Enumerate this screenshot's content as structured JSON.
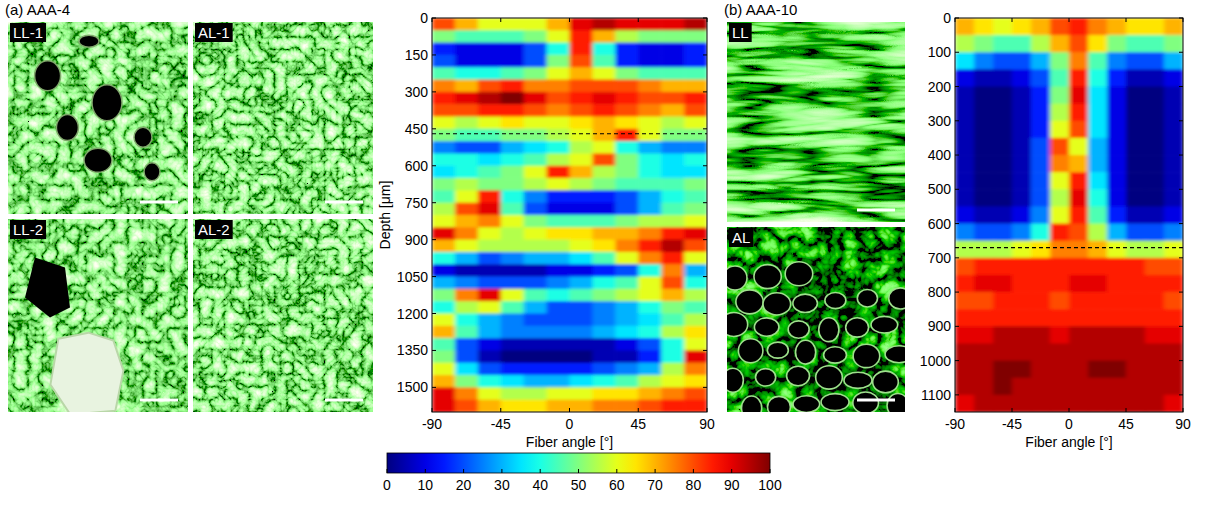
{
  "panels": [
    {
      "label": "(a) AAA-4",
      "images": [
        "LL-1",
        "AL-1",
        "LL-2",
        "AL-2"
      ]
    },
    {
      "label": "(b) AAA-10",
      "images": [
        "LL",
        "AL"
      ]
    }
  ],
  "colorbar": {
    "range": [
      0,
      100
    ],
    "ticks": [
      0,
      10,
      20,
      30,
      40,
      50,
      60,
      70,
      80,
      90,
      100
    ]
  },
  "chart_data": [
    {
      "type": "heatmap",
      "x_label": "Fiber angle [°]",
      "y_label": "Depth [μm]",
      "xlim": [
        -90,
        90
      ],
      "xticks": [
        -90,
        -45,
        0,
        45,
        90
      ],
      "ylim": [
        0,
        1600
      ],
      "yticks": [
        0,
        150,
        300,
        450,
        600,
        750,
        900,
        1050,
        1200,
        1350,
        1500
      ],
      "boundary_depth": 470,
      "cells": [
        [
          80,
          70,
          60,
          60,
          60,
          70,
          90,
          95,
          90,
          90,
          90,
          95
        ],
        [
          50,
          45,
          45,
          45,
          50,
          60,
          85,
          70,
          55,
          50,
          50,
          50
        ],
        [
          15,
          10,
          10,
          10,
          20,
          40,
          85,
          40,
          15,
          10,
          10,
          15
        ],
        [
          20,
          10,
          10,
          10,
          20,
          50,
          80,
          45,
          15,
          10,
          10,
          15
        ],
        [
          45,
          40,
          40,
          45,
          50,
          60,
          70,
          60,
          50,
          45,
          45,
          45
        ],
        [
          75,
          70,
          80,
          85,
          75,
          75,
          80,
          80,
          80,
          75,
          70,
          70
        ],
        [
          85,
          90,
          95,
          100,
          90,
          80,
          85,
          90,
          85,
          80,
          80,
          85
        ],
        [
          80,
          80,
          85,
          85,
          80,
          75,
          80,
          85,
          80,
          75,
          70,
          80
        ],
        [
          60,
          55,
          60,
          65,
          60,
          60,
          65,
          70,
          65,
          60,
          55,
          60
        ],
        [
          50,
          45,
          45,
          50,
          50,
          55,
          60,
          70,
          85,
          60,
          50,
          50
        ],
        [
          25,
          20,
          20,
          30,
          35,
          40,
          55,
          60,
          40,
          30,
          25,
          25
        ],
        [
          40,
          40,
          35,
          40,
          45,
          55,
          60,
          80,
          50,
          40,
          35,
          40
        ],
        [
          35,
          40,
          45,
          50,
          60,
          85,
          70,
          55,
          50,
          40,
          35,
          35
        ],
        [
          50,
          55,
          50,
          50,
          55,
          60,
          55,
          50,
          45,
          45,
          45,
          50
        ],
        [
          45,
          60,
          85,
          40,
          25,
          15,
          15,
          15,
          20,
          30,
          40,
          45
        ],
        [
          55,
          80,
          90,
          45,
          20,
          10,
          10,
          10,
          20,
          30,
          45,
          50
        ],
        [
          60,
          70,
          75,
          60,
          50,
          45,
          45,
          45,
          50,
          55,
          55,
          60
        ],
        [
          90,
          75,
          60,
          55,
          60,
          65,
          65,
          70,
          70,
          75,
          85,
          90
        ],
        [
          70,
          60,
          55,
          55,
          55,
          55,
          60,
          65,
          75,
          85,
          95,
          80
        ],
        [
          40,
          30,
          20,
          25,
          30,
          30,
          35,
          45,
          60,
          75,
          85,
          60
        ],
        [
          10,
          5,
          5,
          5,
          5,
          10,
          10,
          15,
          20,
          40,
          75,
          30
        ],
        [
          30,
          25,
          20,
          20,
          20,
          25,
          30,
          40,
          45,
          60,
          80,
          40
        ],
        [
          50,
          75,
          90,
          60,
          45,
          40,
          45,
          50,
          55,
          60,
          70,
          55
        ],
        [
          40,
          55,
          60,
          45,
          30,
          20,
          20,
          25,
          30,
          40,
          50,
          45
        ],
        [
          60,
          40,
          30,
          25,
          20,
          20,
          20,
          25,
          30,
          35,
          45,
          55
        ],
        [
          70,
          45,
          30,
          25,
          25,
          25,
          25,
          30,
          35,
          40,
          55,
          65
        ],
        [
          45,
          20,
          10,
          5,
          5,
          5,
          5,
          5,
          10,
          20,
          40,
          60
        ],
        [
          50,
          20,
          5,
          0,
          0,
          0,
          0,
          5,
          5,
          15,
          40,
          90
        ],
        [
          60,
          35,
          20,
          15,
          15,
          15,
          15,
          20,
          25,
          30,
          55,
          75
        ],
        [
          70,
          50,
          40,
          35,
          30,
          30,
          35,
          40,
          45,
          55,
          60,
          65
        ],
        [
          90,
          75,
          60,
          55,
          55,
          60,
          60,
          65,
          65,
          70,
          75,
          80
        ],
        [
          90,
          80,
          70,
          65,
          65,
          70,
          70,
          75,
          75,
          80,
          85,
          85
        ]
      ]
    },
    {
      "type": "heatmap",
      "x_label": "Fiber angle [°]",
      "xlim": [
        -90,
        90
      ],
      "xticks": [
        -90,
        -45,
        0,
        45,
        90
      ],
      "ylim": [
        0,
        1150
      ],
      "yticks": [
        0,
        100,
        200,
        300,
        400,
        500,
        600,
        700,
        800,
        900,
        1000,
        1100
      ],
      "boundary_depth": 670,
      "cells": [
        [
          70,
          65,
          60,
          65,
          70,
          80,
          85,
          75,
          70,
          65,
          65,
          70
        ],
        [
          55,
          50,
          45,
          45,
          55,
          70,
          80,
          65,
          50,
          45,
          45,
          50
        ],
        [
          35,
          25,
          20,
          20,
          30,
          50,
          75,
          45,
          25,
          20,
          20,
          30
        ],
        [
          10,
          5,
          5,
          10,
          20,
          45,
          85,
          40,
          15,
          5,
          5,
          10
        ],
        [
          5,
          0,
          0,
          5,
          15,
          50,
          90,
          35,
          10,
          0,
          0,
          5
        ],
        [
          5,
          0,
          0,
          5,
          15,
          55,
          85,
          35,
          10,
          0,
          0,
          5
        ],
        [
          5,
          0,
          0,
          5,
          15,
          60,
          80,
          35,
          10,
          0,
          0,
          5
        ],
        [
          5,
          0,
          0,
          5,
          20,
          80,
          60,
          30,
          10,
          0,
          0,
          5
        ],
        [
          5,
          0,
          0,
          5,
          20,
          75,
          70,
          30,
          10,
          0,
          0,
          5
        ],
        [
          5,
          0,
          0,
          5,
          20,
          60,
          85,
          35,
          10,
          0,
          0,
          5
        ],
        [
          5,
          0,
          0,
          5,
          20,
          55,
          90,
          40,
          10,
          0,
          0,
          5
        ],
        [
          10,
          5,
          5,
          10,
          25,
          60,
          85,
          45,
          15,
          5,
          5,
          10
        ],
        [
          25,
          20,
          20,
          25,
          40,
          85,
          80,
          55,
          30,
          20,
          20,
          25
        ],
        [
          55,
          55,
          55,
          60,
          65,
          75,
          75,
          70,
          60,
          55,
          55,
          60
        ],
        [
          80,
          85,
          85,
          85,
          85,
          85,
          85,
          85,
          85,
          85,
          80,
          80
        ],
        [
          85,
          90,
          90,
          85,
          85,
          85,
          90,
          90,
          85,
          85,
          85,
          85
        ],
        [
          80,
          80,
          85,
          85,
          85,
          80,
          85,
          85,
          85,
          85,
          85,
          80
        ],
        [
          85,
          85,
          85,
          85,
          85,
          85,
          85,
          85,
          85,
          85,
          85,
          85
        ],
        [
          90,
          90,
          95,
          95,
          95,
          90,
          95,
          95,
          95,
          95,
          90,
          90
        ],
        [
          95,
          95,
          95,
          95,
          95,
          95,
          95,
          95,
          95,
          95,
          95,
          95
        ],
        [
          95,
          95,
          100,
          100,
          95,
          95,
          95,
          100,
          100,
          95,
          95,
          95
        ],
        [
          95,
          95,
          100,
          95,
          95,
          95,
          95,
          95,
          95,
          95,
          95,
          95
        ],
        [
          90,
          95,
          95,
          95,
          95,
          95,
          95,
          95,
          95,
          95,
          95,
          90
        ]
      ]
    }
  ]
}
